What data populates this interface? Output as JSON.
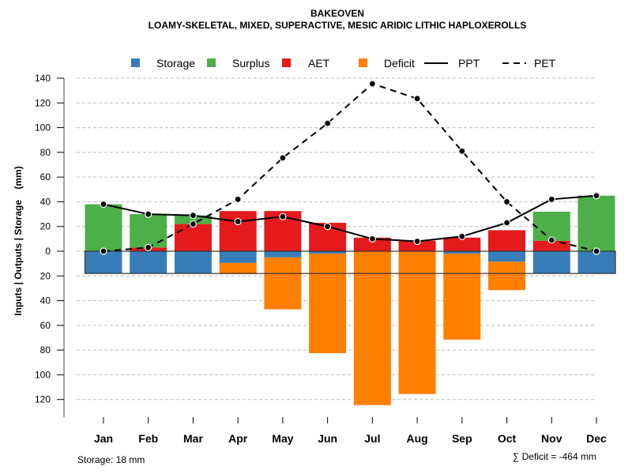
{
  "chart_data": {
    "type": "bar",
    "title": "BAKEOVEN",
    "subtitle": "LOAMY-SKELETAL, MIXED, SUPERACTIVE, MESIC ARIDIC LITHIC HAPLOXEROLLS",
    "xlabel": "",
    "ylabel": "Inputs | Outputs | Storage    (mm)",
    "ylim": [
      -130,
      140
    ],
    "yticks": [
      140,
      120,
      100,
      80,
      60,
      40,
      20,
      0,
      -20,
      -40,
      -60,
      -80,
      -100,
      -120
    ],
    "ytick_labels": [
      "140",
      "120",
      "100",
      "80",
      "60",
      "40",
      "20",
      "0",
      "20",
      "40",
      "60",
      "80",
      "100",
      "120"
    ],
    "grid": true,
    "legend_position": "top",
    "categories": [
      "Jan",
      "Feb",
      "Mar",
      "Apr",
      "May",
      "Jun",
      "Jul",
      "Aug",
      "Sep",
      "Oct",
      "Nov",
      "Dec"
    ],
    "storage_capacity": 18,
    "series": [
      {
        "name": "Storage",
        "kind": "bar",
        "color": "#377EB8",
        "values": [
          -18,
          -18,
          -18,
          -9.5,
          -5,
          -2,
          0,
          0,
          -2,
          -8.5,
          -18,
          -18
        ]
      },
      {
        "name": "Surplus",
        "kind": "bar",
        "color": "#4DAF4A",
        "values": [
          38,
          27,
          7,
          0,
          0,
          0,
          0,
          0,
          0,
          0,
          23.5,
          45
        ]
      },
      {
        "name": "AET",
        "kind": "bar",
        "color": "#E41A1C",
        "values": [
          0,
          3,
          22,
          32.5,
          32.5,
          23,
          11,
          8.5,
          11,
          17,
          8.5,
          0
        ]
      },
      {
        "name": "Deficit",
        "kind": "bar",
        "color": "#FF7F00",
        "values": [
          0,
          0,
          0,
          -9,
          -42,
          -80.5,
          -124.5,
          -115.5,
          -69.5,
          -23,
          0,
          0
        ]
      },
      {
        "name": "PPT",
        "kind": "line",
        "style": "solid",
        "color": "#000000",
        "values": [
          38,
          30,
          29,
          24,
          28,
          20,
          10,
          8,
          12,
          23,
          42,
          45
        ]
      },
      {
        "name": "PET",
        "kind": "line",
        "style": "dashed",
        "color": "#000000",
        "values": [
          0,
          3,
          22,
          42,
          75.5,
          103.5,
          135.5,
          123.5,
          81,
          40,
          9,
          0
        ]
      }
    ],
    "annotations": {
      "storage_note": "Storage: 18 mm",
      "deficit_note": "∑ Deficit = -464 mm"
    }
  }
}
